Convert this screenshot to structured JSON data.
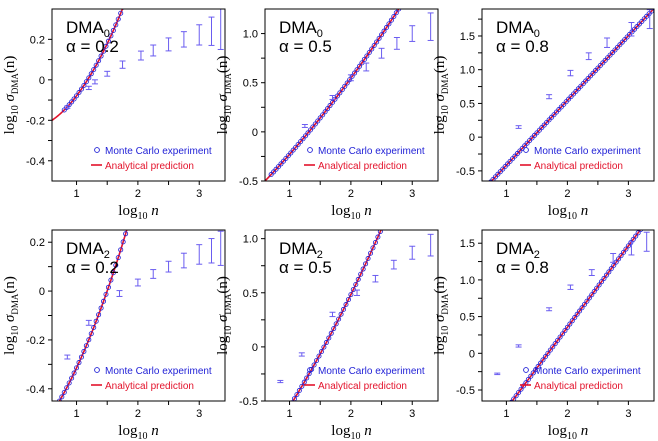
{
  "legend": {
    "mc_label": "Monte Carlo experiment",
    "pred_label": "Analytical prediction"
  },
  "axis_text": {
    "x_prefix": "log",
    "x_sub": "10",
    "x_var": "n",
    "y_prefix": "log",
    "y_sub": "10",
    "y_sigma": "σ",
    "y_sigma_sub": "DMA",
    "y_paren": "(n)"
  },
  "colors": {
    "monte_carlo": "#1f1fd6",
    "prediction": "#e3122b",
    "errorbar": "#6a5cf0",
    "axis": "#000000"
  },
  "chart_data": [
    {
      "type": "scatter",
      "method_base": "DMA",
      "method_sub": "0",
      "alpha_label": "α = 0.2",
      "xlim": [
        0.6,
        3.42
      ],
      "ylim": [
        -0.5,
        0.35
      ],
      "xticks": [
        1,
        1.5,
        2,
        2.5,
        3
      ],
      "xtick_labels": [
        "1",
        "",
        "2",
        "",
        "3"
      ],
      "yticks": [
        -0.4,
        -0.3,
        -0.2,
        -0.1,
        0,
        0.1,
        0.2
      ],
      "ytick_labels": [
        "-0.4",
        "",
        "-0.2",
        "",
        "0",
        "",
        "0.2"
      ],
      "legend_position": "lower-right",
      "grid": false,
      "curve": {
        "a": -0.2,
        "b": 0.208,
        "c": 0.236,
        "x_start": 0.6
      },
      "series": [
        {
          "name": "Monte Carlo experiment",
          "x_start": 0.8,
          "x_step": 0.04,
          "errorbars": [
            {
              "x": 0.85,
              "y": -0.135,
              "err": 0.006
            },
            {
              "x": 1.2,
              "y": -0.04,
              "err": 0.008
            },
            {
              "x": 1.3,
              "y": -0.01,
              "err": 0.01
            },
            {
              "x": 1.5,
              "y": 0.03,
              "err": 0.012
            },
            {
              "x": 1.75,
              "y": 0.075,
              "err": 0.018
            },
            {
              "x": 2.05,
              "y": 0.12,
              "err": 0.022
            },
            {
              "x": 2.25,
              "y": 0.145,
              "err": 0.027
            },
            {
              "x": 2.5,
              "y": 0.175,
              "err": 0.032
            },
            {
              "x": 2.75,
              "y": 0.2,
              "err": 0.038
            },
            {
              "x": 3.0,
              "y": 0.222,
              "err": 0.05
            },
            {
              "x": 3.2,
              "y": 0.24,
              "err": 0.07
            },
            {
              "x": 3.35,
              "y": 0.25,
              "err": 0.1
            }
          ]
        },
        {
          "name": "Analytical prediction"
        }
      ]
    },
    {
      "type": "scatter",
      "method_base": "DMA",
      "method_sub": "0",
      "alpha_label": "α = 0.5",
      "xlim": [
        0.6,
        3.42
      ],
      "ylim": [
        -0.5,
        1.25
      ],
      "xticks": [
        1,
        1.5,
        2,
        2.5,
        3
      ],
      "xtick_labels": [
        "1",
        "",
        "2",
        "",
        "3"
      ],
      "yticks": [
        -0.5,
        -0.25,
        0,
        0.25,
        0.5,
        0.75,
        1.0
      ],
      "ytick_labels": [
        "-0.5",
        "",
        "0",
        "",
        "0.5",
        "",
        "1.0"
      ],
      "legend_position": "lower-right",
      "grid": false,
      "curve": {
        "a": -0.5,
        "b": 0.65,
        "c": 0.07,
        "x_start": 0.6
      },
      "series": [
        {
          "name": "Monte Carlo experiment",
          "x_start": 0.7,
          "x_step": 0.04,
          "errorbars": [
            {
              "x": 1.25,
              "y": 0.06,
              "err": 0.015
            },
            {
              "x": 1.7,
              "y": 0.35,
              "err": 0.02
            },
            {
              "x": 2.0,
              "y": 0.55,
              "err": 0.03
            },
            {
              "x": 2.25,
              "y": 0.66,
              "err": 0.04
            },
            {
              "x": 2.5,
              "y": 0.8,
              "err": 0.05
            },
            {
              "x": 2.75,
              "y": 0.9,
              "err": 0.06
            },
            {
              "x": 3.0,
              "y": 1.0,
              "err": 0.08
            },
            {
              "x": 3.3,
              "y": 1.07,
              "err": 0.14
            }
          ]
        },
        {
          "name": "Analytical prediction"
        }
      ]
    },
    {
      "type": "scatter",
      "method_base": "DMA",
      "method_sub": "0",
      "alpha_label": "α = 0.8",
      "xlim": [
        0.6,
        3.42
      ],
      "ylim": [
        -0.65,
        1.9
      ],
      "xticks": [
        1,
        1.5,
        2,
        2.5,
        3
      ],
      "xtick_labels": [
        "1",
        "",
        "2",
        "",
        "3"
      ],
      "yticks": [
        -0.5,
        -0.25,
        0,
        0.25,
        0.5,
        0.75,
        1.0,
        1.25,
        1.5,
        1.75
      ],
      "ytick_labels": [
        "-0.5",
        "",
        "0",
        "",
        "0.5",
        "",
        "1.0",
        "",
        "1.5",
        ""
      ],
      "legend_position": "lower-right",
      "grid": false,
      "curve": {
        "a": -0.8,
        "b": 0.96,
        "c": 0.0,
        "x_start": 0.6
      },
      "series": [
        {
          "name": "Monte Carlo experiment",
          "x_start": 0.7,
          "x_step": 0.04,
          "errorbars": [
            {
              "x": 1.2,
              "y": 0.15,
              "err": 0.02
            },
            {
              "x": 1.7,
              "y": 0.6,
              "err": 0.03
            },
            {
              "x": 2.05,
              "y": 0.95,
              "err": 0.04
            },
            {
              "x": 2.35,
              "y": 1.2,
              "err": 0.05
            },
            {
              "x": 2.65,
              "y": 1.4,
              "err": 0.07
            },
            {
              "x": 3.05,
              "y": 1.6,
              "err": 0.1
            },
            {
              "x": 3.35,
              "y": 1.75,
              "err": 0.14
            }
          ]
        },
        {
          "name": "Analytical prediction"
        }
      ]
    },
    {
      "type": "scatter",
      "method_base": "DMA",
      "method_sub": "2",
      "alpha_label": "α = 0.2",
      "xlim": [
        0.6,
        3.42
      ],
      "ylim": [
        -0.45,
        0.25
      ],
      "xticks": [
        1,
        1.5,
        2,
        2.5,
        3
      ],
      "xtick_labels": [
        "1",
        "",
        "2",
        "",
        "3"
      ],
      "yticks": [
        -0.4,
        -0.3,
        -0.2,
        -0.1,
        0,
        0.1,
        0.2
      ],
      "ytick_labels": [
        "-0.4",
        "",
        "-0.2",
        "",
        "0",
        "",
        "0.2"
      ],
      "legend_position": "lower-right",
      "grid": false,
      "curve": {
        "a": -0.5,
        "b": 0.39,
        "c": 0.185,
        "x_start": 0.66
      },
      "series": [
        {
          "name": "Monte Carlo experiment",
          "x_start": 0.72,
          "x_step": 0.04,
          "errorbars": [
            {
              "x": 0.85,
              "y": -0.27,
              "err": 0.008
            },
            {
              "x": 1.2,
              "y": -0.13,
              "err": 0.01
            },
            {
              "x": 1.7,
              "y": -0.01,
              "err": 0.012
            },
            {
              "x": 2.0,
              "y": 0.035,
              "err": 0.014
            },
            {
              "x": 2.25,
              "y": 0.07,
              "err": 0.018
            },
            {
              "x": 2.5,
              "y": 0.1,
              "err": 0.022
            },
            {
              "x": 2.75,
              "y": 0.125,
              "err": 0.03
            },
            {
              "x": 3.0,
              "y": 0.15,
              "err": 0.04
            },
            {
              "x": 3.2,
              "y": 0.165,
              "err": 0.05
            },
            {
              "x": 3.35,
              "y": 0.175,
              "err": 0.07
            }
          ]
        },
        {
          "name": "Analytical prediction"
        }
      ]
    },
    {
      "type": "scatter",
      "method_base": "DMA",
      "method_sub": "2",
      "alpha_label": "α = 0.5",
      "xlim": [
        0.6,
        3.42
      ],
      "ylim": [
        -0.5,
        1.08
      ],
      "xticks": [
        1,
        1.5,
        2,
        2.5,
        3
      ],
      "xtick_labels": [
        "1",
        "",
        "2",
        "",
        "3"
      ],
      "yticks": [
        -0.5,
        -0.25,
        0,
        0.25,
        0.5,
        0.75,
        1.0
      ],
      "ytick_labels": [
        "-0.5",
        "",
        "0",
        "",
        "0.5",
        "",
        "1.0"
      ],
      "legend_position": "lower-right",
      "grid": false,
      "curve": {
        "a": -0.9,
        "b": 0.82,
        "c": 0.12,
        "x_start": 0.64
      },
      "series": [
        {
          "name": "Monte Carlo experiment",
          "x_start": 0.72,
          "x_step": 0.04,
          "errorbars": [
            {
              "x": 0.85,
              "y": -0.32,
              "err": 0.01
            },
            {
              "x": 1.2,
              "y": -0.07,
              "err": 0.015
            },
            {
              "x": 1.7,
              "y": 0.3,
              "err": 0.02
            },
            {
              "x": 2.1,
              "y": 0.5,
              "err": 0.025
            },
            {
              "x": 2.4,
              "y": 0.63,
              "err": 0.03
            },
            {
              "x": 2.7,
              "y": 0.76,
              "err": 0.04
            },
            {
              "x": 3.0,
              "y": 0.87,
              "err": 0.06
            },
            {
              "x": 3.3,
              "y": 0.94,
              "err": 0.1
            }
          ]
        },
        {
          "name": "Analytical prediction"
        }
      ]
    },
    {
      "type": "scatter",
      "method_base": "DMA",
      "method_sub": "2",
      "alpha_label": "α = 0.8",
      "xlim": [
        0.6,
        3.42
      ],
      "ylim": [
        -0.65,
        1.68
      ],
      "xticks": [
        1,
        1.5,
        2,
        2.5,
        3
      ],
      "xtick_labels": [
        "1",
        "",
        "2",
        "",
        "3"
      ],
      "yticks": [
        -0.5,
        -0.25,
        0,
        0.25,
        0.5,
        0.75,
        1.0,
        1.25,
        1.5
      ],
      "ytick_labels": [
        "-0.5",
        "",
        "0",
        "",
        "0.5",
        "",
        "1.0",
        "",
        "1.5"
      ],
      "legend_position": "lower-right",
      "grid": false,
      "curve": {
        "a": -1.2,
        "b": 1.11,
        "c": 0.0,
        "x_start": 0.6
      },
      "series": [
        {
          "name": "Monte Carlo experiment",
          "x_start": 0.72,
          "x_step": 0.04,
          "errorbars": [
            {
              "x": 0.85,
              "y": -0.28,
              "err": 0.01
            },
            {
              "x": 1.2,
              "y": 0.1,
              "err": 0.015
            },
            {
              "x": 1.7,
              "y": 0.6,
              "err": 0.02
            },
            {
              "x": 2.05,
              "y": 0.9,
              "err": 0.03
            },
            {
              "x": 2.4,
              "y": 1.1,
              "err": 0.04
            },
            {
              "x": 2.75,
              "y": 1.3,
              "err": 0.06
            },
            {
              "x": 3.05,
              "y": 1.43,
              "err": 0.09
            },
            {
              "x": 3.3,
              "y": 1.52,
              "err": 0.13
            }
          ]
        },
        {
          "name": "Analytical prediction"
        }
      ]
    }
  ]
}
